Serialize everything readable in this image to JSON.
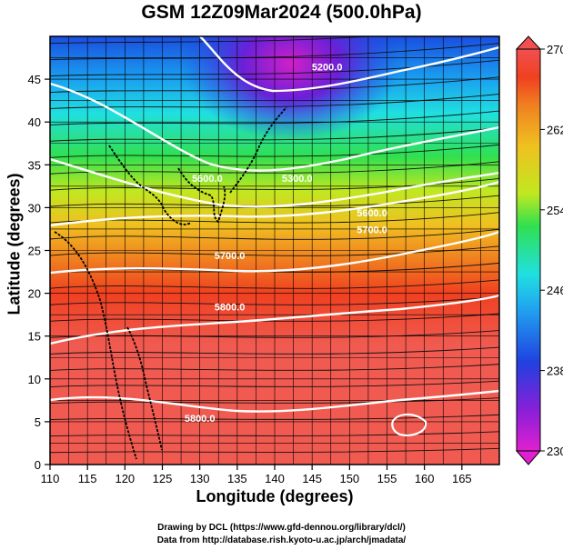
{
  "title": "GSM 12Z09Mar2024 (500.0hPa)",
  "x_axis": {
    "label": "Longitude (degrees)",
    "range": [
      110,
      170
    ],
    "ticks": [
      "110",
      "115",
      "120",
      "125",
      "130",
      "135",
      "140",
      "145",
      "150",
      "155",
      "160",
      "165"
    ]
  },
  "y_axis": {
    "label": "Latitude  (degrees)",
    "range": [
      0,
      50
    ],
    "ticks": [
      "0",
      "5",
      "10",
      "15",
      "20",
      "25",
      "30",
      "35",
      "40",
      "45"
    ]
  },
  "colorbar": {
    "range": [
      230,
      270
    ],
    "ticks": [
      "230",
      "238",
      "246",
      "254",
      "262",
      "270"
    ],
    "colors": [
      "#e020d0",
      "#8a1fd8",
      "#2040e0",
      "#20a8f0",
      "#20e0e0",
      "#30e050",
      "#c0e820",
      "#f0c020",
      "#f08020",
      "#f04020",
      "#f05050"
    ]
  },
  "contour_labels": [
    {
      "text": "5200.0",
      "lon": 147,
      "lat": 46
    },
    {
      "text": "5300.0",
      "lon": 143,
      "lat": 33
    },
    {
      "text": "5600.0",
      "lon": 131,
      "lat": 33
    },
    {
      "text": "5600.0",
      "lon": 153,
      "lat": 29
    },
    {
      "text": "5700.0",
      "lon": 153,
      "lat": 27
    },
    {
      "text": "5700.0",
      "lon": 134,
      "lat": 24
    },
    {
      "text": "5800.0",
      "lon": 134,
      "lat": 18
    },
    {
      "text": "5800.0",
      "lon": 130,
      "lat": 5
    }
  ],
  "credits": [
    "Drawing by DCL (https://www.gfd-dennou.org/library/dcl/)",
    "Data from http://database.rish.kyoto-u.ac.jp/arch/jmadata/"
  ]
}
